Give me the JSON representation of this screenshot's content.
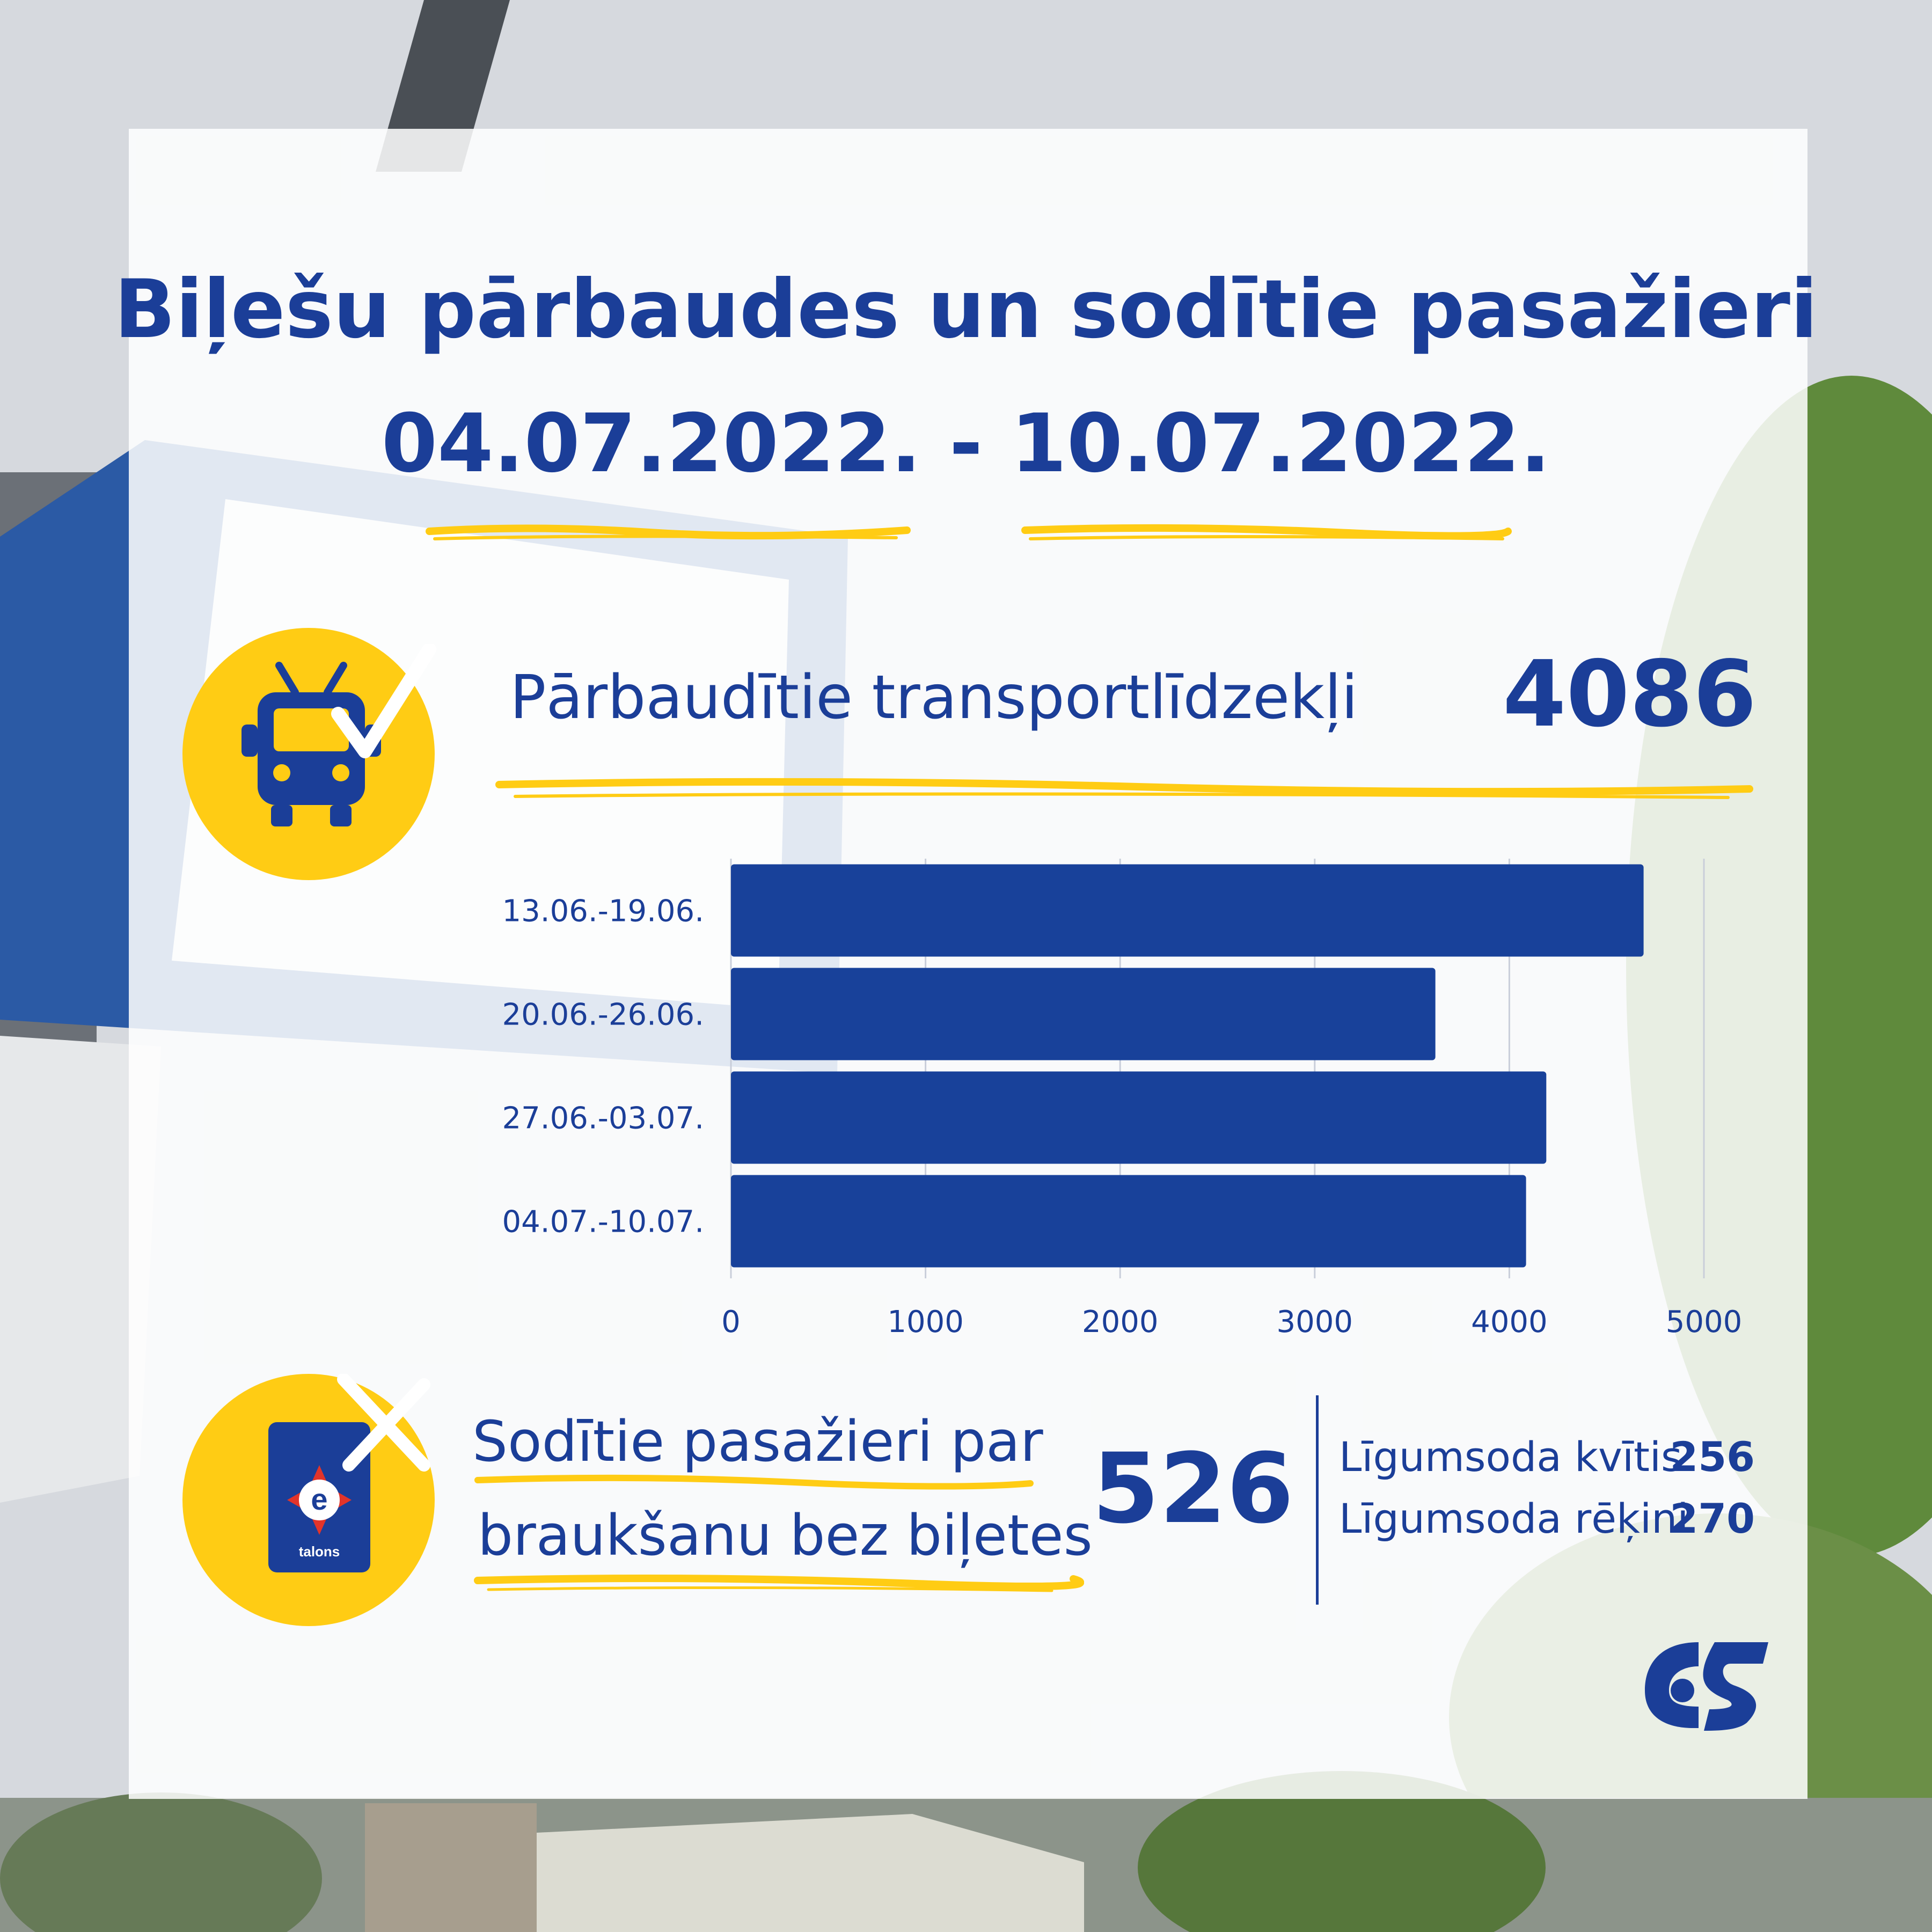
{
  "title": {
    "line1": "Biļešu pārbaudes un sodītie pasažieri",
    "line2": "04.07.2022. - 10.07.2022."
  },
  "vehicles": {
    "label": "Pārbaudītie transportlīdzekļi",
    "value": "4086",
    "icon": "trolleybus-check-icon"
  },
  "fined": {
    "label_line1": "Sodītie pasažieri par",
    "label_line2": "braukšanu bez biļetes",
    "value": "526",
    "icon": "etalons-card-cross-icon",
    "card_text": "talons",
    "breakdown": [
      {
        "label": "Līgumsoda kvītis",
        "value": "256"
      },
      {
        "label": "Līgumsoda rēķini",
        "value": "270"
      }
    ]
  },
  "colors": {
    "accent": "#1b3e98",
    "highlight": "#ffcc14",
    "bar": "#18419a"
  },
  "logo": "rigas-satiksme-logo",
  "chart_data": {
    "type": "bar",
    "orientation": "horizontal",
    "categories": [
      "13.06.-19.06.",
      "20.06.-26.06.",
      "27.06.-03.07.",
      "04.07.-10.07."
    ],
    "values": [
      4690,
      3620,
      4190,
      4086
    ],
    "xlim": [
      0,
      5000
    ],
    "xticks": [
      0,
      1000,
      2000,
      3000,
      4000,
      5000
    ],
    "grid": true
  }
}
